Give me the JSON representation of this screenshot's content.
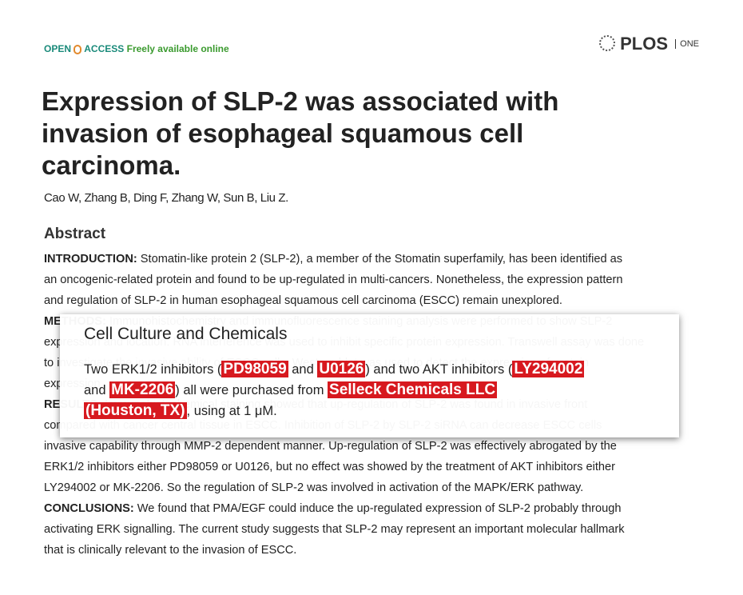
{
  "header": {
    "open": "OPEN",
    "access": "ACCESS",
    "availability": "Freely available online",
    "brand": "PLOS",
    "journal": "ONE"
  },
  "article": {
    "title_lines": [
      "Expression of SLP-2 was associated with",
      "invasion of esophageal squamous cell",
      "carcinoma."
    ],
    "authors": "Cao W, Zhang B, Ding F, Zhang W, Sun B, Liu Z.",
    "abstract_heading": "Abstract",
    "abstract_lines": [
      {
        "label": "INTRODUCTION:",
        "text": " Stomatin-like protein 2 (SLP-2), a member of the Stomatin superfamily, has been identified as"
      },
      {
        "text": "an oncogenic-related protein and found to be up-regulated in multi-cancers. Nonetheless, the expression pattern"
      },
      {
        "text": "and regulation of SLP-2 in human esophageal squamous cell carcinoma (ESCC) remain unexplored."
      },
      {
        "label": "METHODS:",
        "text": " Immunohistochemistry and immunofluorescence staining analysis were performed to show SLP-2"
      },
      {
        "text": "expression and location. RNA interference was used to inhibit specific protein expression. Transwell assay was done"
      },
      {
        "text": "to investigate the invasive ability of ESCC cells. Western blot was used to detect the expression of protein"
      },
      {
        "text": "expression."
      },
      {
        "label": "RESULTS:",
        "text": " Immunohistochemical staining showed that up-regulation of SLP-2 was found in invasive front"
      },
      {
        "text": "compared with cancer central tissue in ESCC. Inhibition of SLP-2 by SLP-2 siRNA can decrease ESCC cells"
      },
      {
        "text": "invasive capability through MMP-2 dependent manner. Up-regulation of SLP-2 was effectively abrogated by the"
      },
      {
        "text": "ERK1/2 inhibitors either PD98059 or U0126, but no effect was showed by the treatment of AKT inhibitors either"
      },
      {
        "text": "LY294002 or MK-2206. So the regulation of SLP-2 was involved in activation of the MAPK/ERK pathway."
      },
      {
        "label": "CONCLUSIONS:",
        "text": " We found that PMA/EGF could induce the up-regulated expression of SLP-2 probably through"
      },
      {
        "text": "activating ERK signalling. The current study suggests that SLP-2 may represent an important molecular hallmark"
      },
      {
        "text": "that is clinically relevant to the invasion of ESCC."
      }
    ]
  },
  "popup": {
    "heading": "Cell Culture and Chemicals",
    "lines": [
      [
        {
          "text": "Two ERK1/2 inhibitors ("
        },
        {
          "text": "PD98059",
          "highlight": true
        },
        {
          "text": " and "
        },
        {
          "text": "U0126",
          "highlight": true
        },
        {
          "text": ") and two AKT inhibitors ("
        },
        {
          "text": "LY294002",
          "highlight": true
        }
      ],
      [
        {
          "text": "and "
        },
        {
          "text": "MK-2206",
          "highlight": true
        },
        {
          "text": ") all were purchased from "
        },
        {
          "text": "Selleck Chemicals LLC",
          "highlight": true
        }
      ],
      [
        {
          "text": "(Houston, TX)",
          "highlight": true
        },
        {
          "text": ", using at 1 μM."
        }
      ]
    ]
  }
}
